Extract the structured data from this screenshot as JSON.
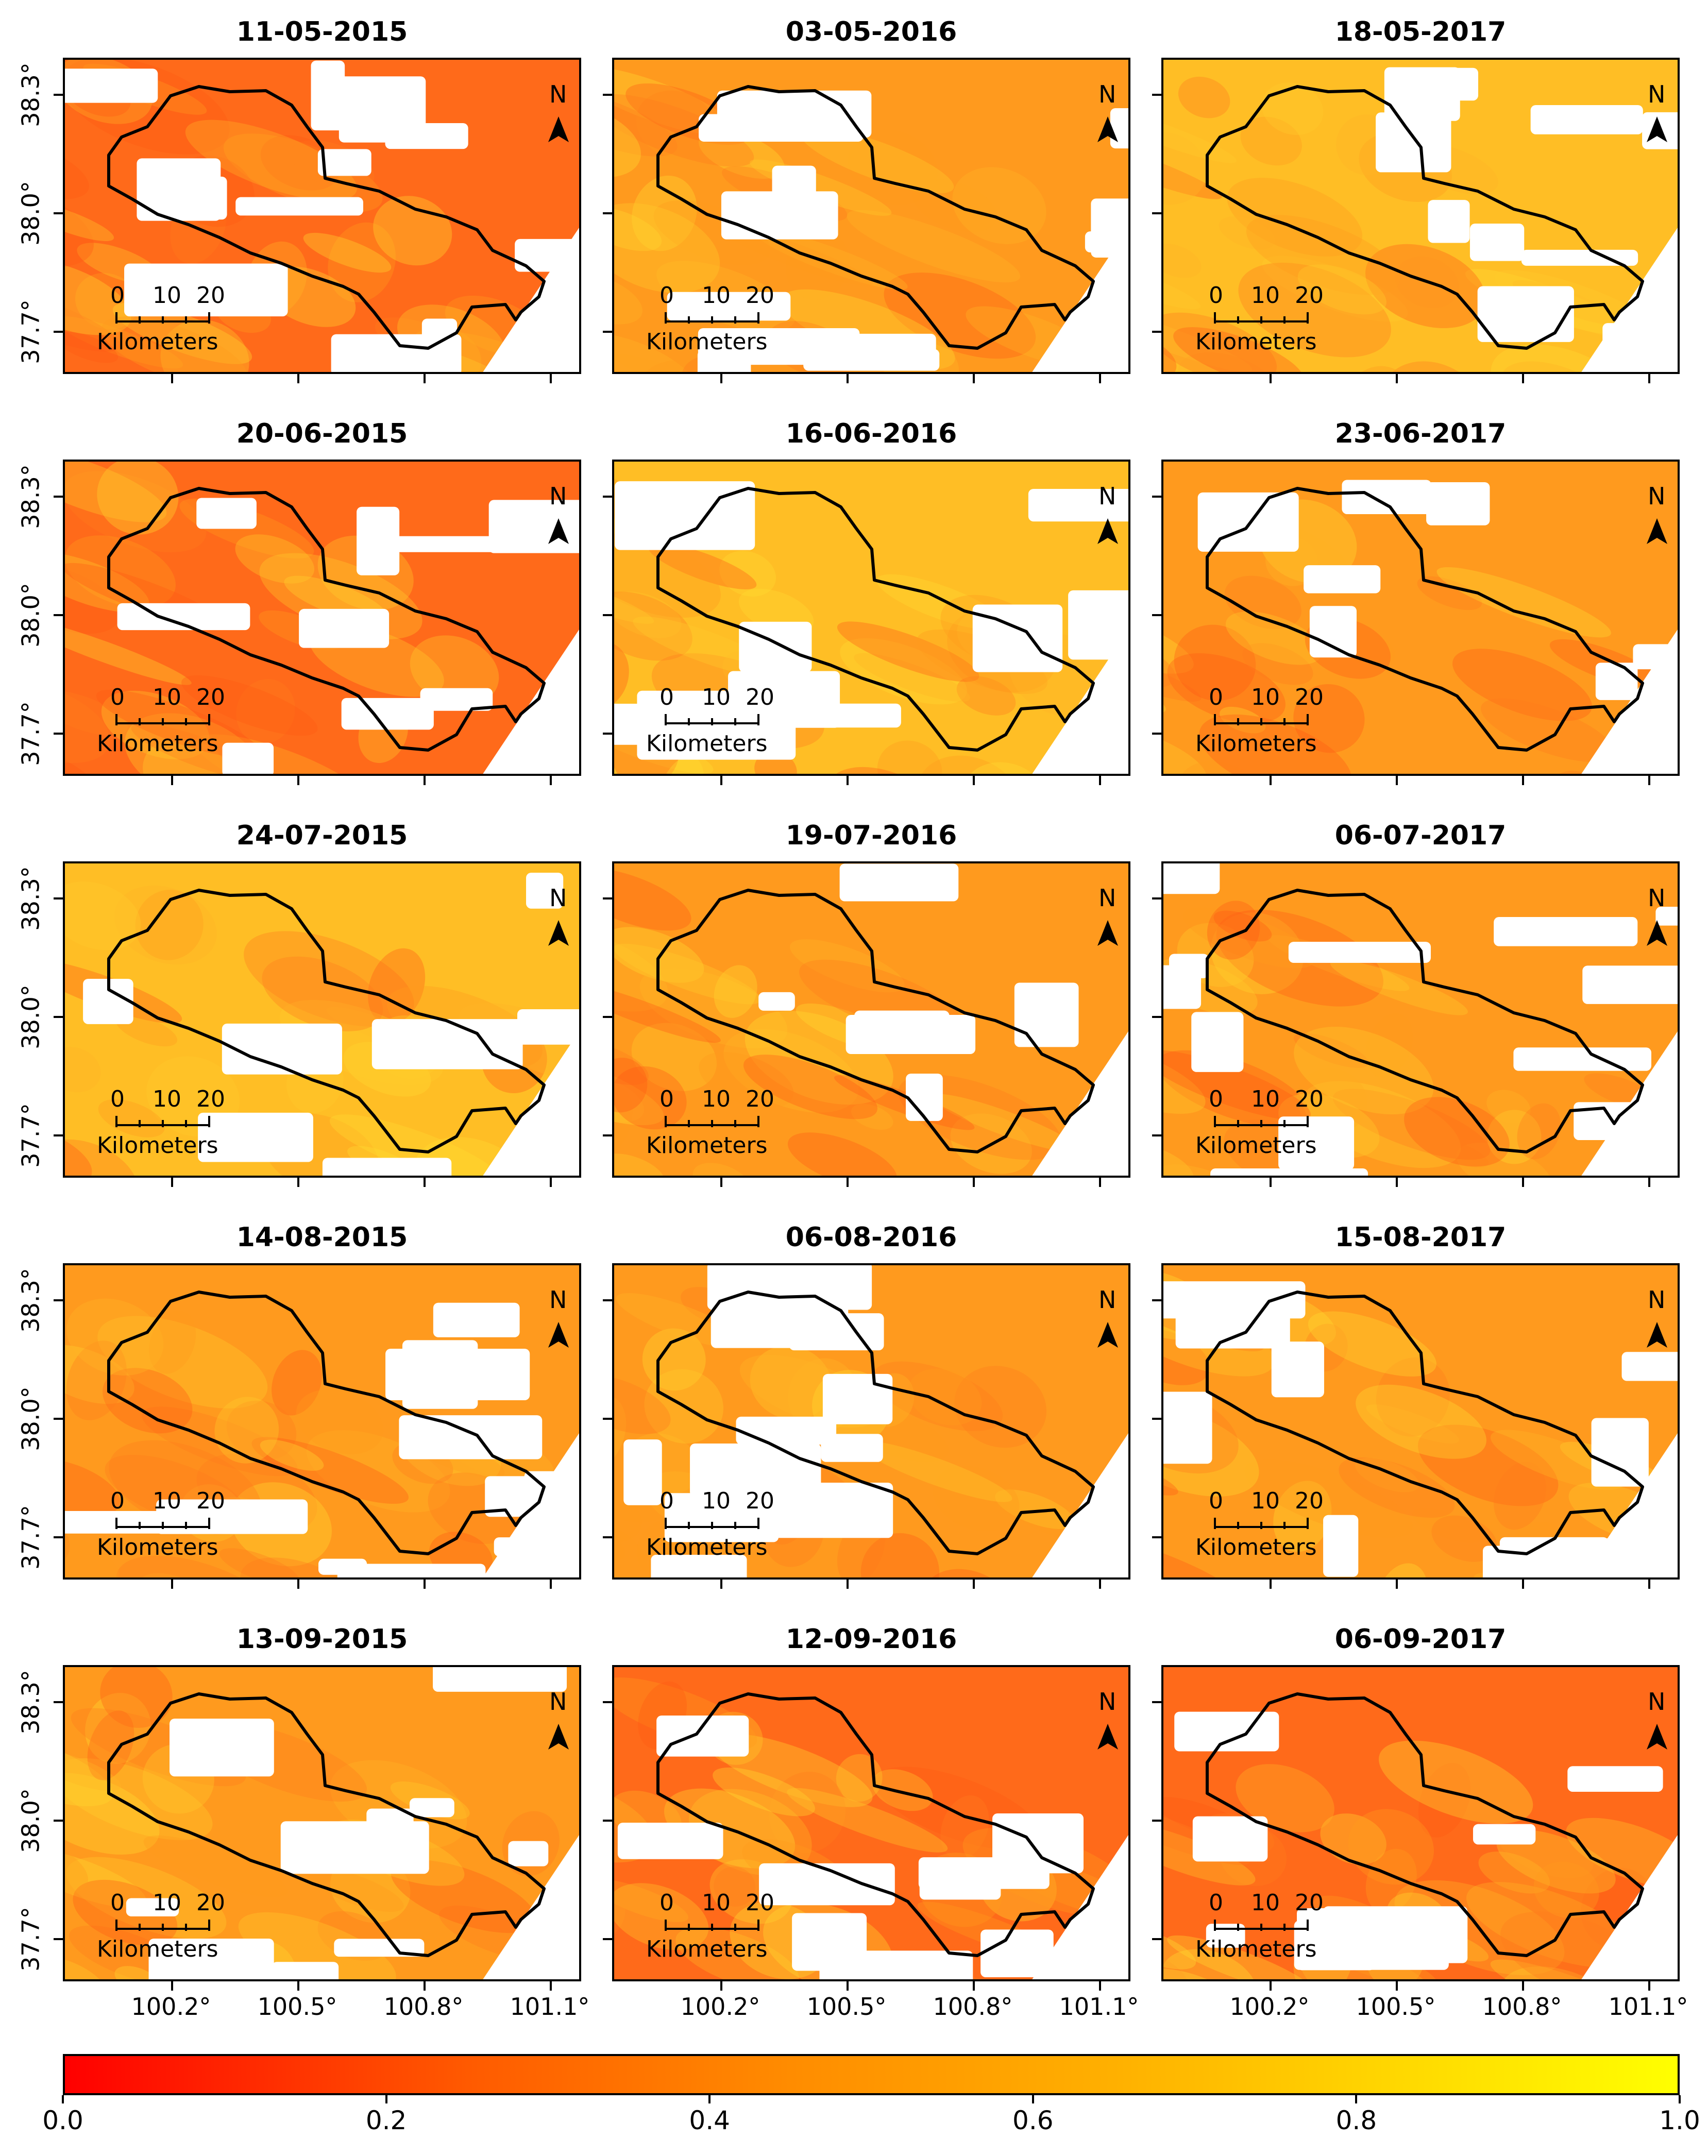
{
  "panels": [
    {
      "date": "11-05-2015",
      "tone": "red"
    },
    {
      "date": "03-05-2016",
      "tone": "orange"
    },
    {
      "date": "18-05-2017",
      "tone": "yellow"
    },
    {
      "date": "20-06-2015",
      "tone": "red"
    },
    {
      "date": "16-06-2016",
      "tone": "yellow"
    },
    {
      "date": "23-06-2017",
      "tone": "orange"
    },
    {
      "date": "24-07-2015",
      "tone": "yellow"
    },
    {
      "date": "19-07-2016",
      "tone": "orange"
    },
    {
      "date": "06-07-2017",
      "tone": "orange"
    },
    {
      "date": "14-08-2015",
      "tone": "orange"
    },
    {
      "date": "06-08-2016",
      "tone": "orange"
    },
    {
      "date": "15-08-2017",
      "tone": "orange"
    },
    {
      "date": "13-09-2015",
      "tone": "orange"
    },
    {
      "date": "12-09-2016",
      "tone": "red"
    },
    {
      "date": "06-09-2017",
      "tone": "red"
    }
  ],
  "y_ticks": [
    "38.3°",
    "38.0°",
    "37.7°"
  ],
  "x_ticks": [
    "100.2°",
    "100.5°",
    "100.8°",
    "101.1°"
  ],
  "north_label": "N",
  "scale_bar": {
    "labels": [
      "0",
      "10",
      "20"
    ],
    "unit": "Kilometers"
  },
  "colorbar": {
    "ticks": [
      "0.0",
      "0.2",
      "0.4",
      "0.6",
      "0.8",
      "1.0"
    ],
    "tick_values": [
      0.0,
      0.2,
      0.4,
      0.6,
      0.8,
      1.0
    ],
    "range": [
      0,
      1
    ],
    "colormap": [
      "#ff0000",
      "#ff8c00",
      "#ffff00"
    ]
  },
  "tone_colors": {
    "red": "#ff6a1a",
    "orange": "#ff9a1e",
    "yellow": "#ffbe25"
  }
}
